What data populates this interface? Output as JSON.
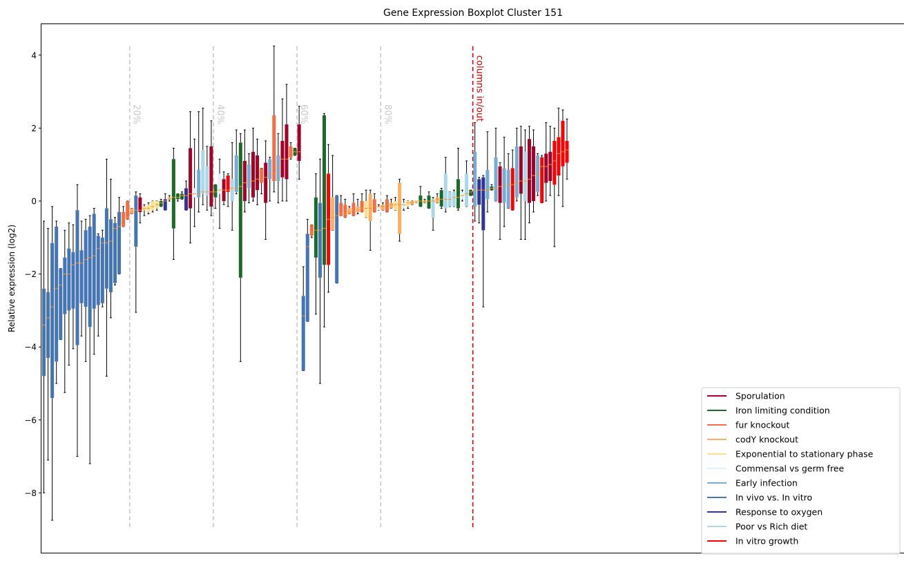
{
  "chart_data": {
    "type": "boxplot",
    "title": "Gene Expression Boxplot Cluster 151",
    "xlabel": "",
    "ylabel": "Relative expression (log2)",
    "ylim": [
      -9.7,
      4.85
    ],
    "yticks": [
      -8,
      -6,
      -4,
      -2,
      0,
      2,
      4
    ],
    "grid": false,
    "legend_position": "lower-right",
    "legend": [
      {
        "name": "Sporulation",
        "color": "#a50026"
      },
      {
        "name": "Iron limiting condition",
        "color": "#1a6a28"
      },
      {
        "name": "fur knockout",
        "color": "#f46d43"
      },
      {
        "name": "codY knockout",
        "color": "#fdae61"
      },
      {
        "name": "Exponential to stationary phase",
        "color": "#fee090"
      },
      {
        "name": "Commensal vs germ free",
        "color": "#e0f3f8"
      },
      {
        "name": "Early infection",
        "color": "#74add1"
      },
      {
        "name": "In vivo vs. In vitro",
        "color": "#4575b4"
      },
      {
        "name": "Response to oxygen",
        "color": "#313695"
      },
      {
        "name": "Poor vs Rich diet",
        "color": "#abd9e9"
      },
      {
        "name": "In vitro growth",
        "color": "#ff0000"
      }
    ],
    "annotations": [
      {
        "text": "20%",
        "color": "#c8c8c8"
      },
      {
        "text": "40%",
        "color": "#c8c8c8"
      },
      {
        "text": "60%",
        "color": "#c8c8c8"
      },
      {
        "text": "80%",
        "color": "#c8c8c8"
      },
      {
        "text": "columns in/out",
        "color": "#d40000"
      }
    ],
    "reference_lines": [
      {
        "position": 20.5,
        "color": "#c8c8c8",
        "style": "dashed"
      },
      {
        "position": 40.5,
        "color": "#c8c8c8",
        "style": "dashed"
      },
      {
        "position": 60.5,
        "color": "#c8c8c8",
        "style": "dashed"
      },
      {
        "position": 80.5,
        "color": "#c8c8c8",
        "style": "dashed"
      },
      {
        "position": 102.5,
        "color": "#d40000",
        "style": "dashed"
      }
    ],
    "boxes": [
      {
        "c": 7,
        "q1": -4.8,
        "med": -3.4,
        "q3": -2.4,
        "lo": -8.0,
        "hi": -0.55
      },
      {
        "c": 7,
        "q1": -4.3,
        "med": -3.2,
        "q3": -2.5,
        "lo": -7.1,
        "hi": -0.75
      },
      {
        "c": 7,
        "q1": -5.4,
        "med": -2.9,
        "q3": -1.15,
        "lo": -8.75,
        "hi": -0.15
      },
      {
        "c": 7,
        "q1": -4.4,
        "med": -2.4,
        "q3": -0.7,
        "lo": -5.0,
        "hi": -0.55
      },
      {
        "c": 7,
        "q1": -3.8,
        "med": -2.3,
        "q3": -1.85,
        "lo": -3.8,
        "hi": -1.85
      },
      {
        "c": 7,
        "q1": -3.1,
        "med": -2.0,
        "q3": -1.55,
        "lo": -5.25,
        "hi": -0.8
      },
      {
        "c": 7,
        "q1": -3.0,
        "med": -2.0,
        "q3": -1.3,
        "lo": -4.5,
        "hi": -0.6
      },
      {
        "c": 7,
        "q1": -2.95,
        "med": -1.75,
        "q3": -1.4,
        "lo": -4.05,
        "hi": -0.65
      },
      {
        "c": 7,
        "q1": -3.95,
        "med": -1.7,
        "q3": -0.25,
        "lo": -7.0,
        "hi": 0.45
      },
      {
        "c": 7,
        "q1": -2.8,
        "med": -1.7,
        "q3": -1.35,
        "lo": -3.7,
        "hi": -0.55
      },
      {
        "c": 7,
        "q1": -2.9,
        "med": -1.6,
        "q3": -0.8,
        "lo": -4.4,
        "hi": -0.5
      },
      {
        "c": 7,
        "q1": -3.45,
        "med": -1.55,
        "q3": -0.7,
        "lo": -7.2,
        "hi": -0.4
      },
      {
        "c": 7,
        "q1": -2.95,
        "med": -1.5,
        "q3": -0.35,
        "lo": -4.2,
        "hi": -0.2
      },
      {
        "c": 7,
        "q1": -2.85,
        "med": -1.3,
        "q3": -0.95,
        "lo": -3.7,
        "hi": -0.9
      },
      {
        "c": 7,
        "q1": -2.8,
        "med": -1.15,
        "q3": -1.0,
        "lo": -2.9,
        "hi": -0.8
      },
      {
        "c": 7,
        "q1": -2.4,
        "med": -1.15,
        "q3": -0.2,
        "lo": -4.8,
        "hi": 1.15
      },
      {
        "c": 7,
        "q1": -2.5,
        "med": -1.1,
        "q3": -0.5,
        "lo": -3.2,
        "hi": 0.6
      },
      {
        "c": 7,
        "q1": -2.25,
        "med": -0.75,
        "q3": -0.6,
        "lo": -2.3,
        "hi": -0.45
      },
      {
        "c": 7,
        "q1": -2.0,
        "med": -0.7,
        "q3": -0.3,
        "lo": -2.0,
        "hi": 0.1
      },
      {
        "c": 2,
        "q1": -0.7,
        "med": -0.65,
        "q3": -0.3,
        "lo": -0.7,
        "hi": -0.15
      },
      {
        "c": 2,
        "q1": -0.5,
        "med": -0.45,
        "q3": 0.0,
        "lo": -0.5,
        "hi": 0.0
      },
      {
        "c": 3,
        "q1": -0.35,
        "med": -0.3,
        "q3": -0.2,
        "lo": -0.35,
        "hi": -0.2
      },
      {
        "c": 7,
        "q1": -1.25,
        "med": -0.25,
        "q3": 0.15,
        "lo": -3.05,
        "hi": 0.25
      },
      {
        "c": 0,
        "q1": -0.3,
        "med": -0.25,
        "q3": 0.1,
        "lo": -0.6,
        "hi": 0.2
      },
      {
        "c": 4,
        "q1": -0.25,
        "med": -0.2,
        "q3": -0.15,
        "lo": -0.4,
        "hi": -0.1
      },
      {
        "c": 4,
        "q1": -0.3,
        "med": -0.2,
        "q3": -0.1,
        "lo": -0.35,
        "hi": -0.05
      },
      {
        "c": 4,
        "q1": -0.25,
        "med": -0.15,
        "q3": 0.0,
        "lo": -0.3,
        "hi": 0.0
      },
      {
        "c": 4,
        "q1": -0.2,
        "med": -0.1,
        "q3": 0.0,
        "lo": -0.25,
        "hi": 0.0
      },
      {
        "c": 1,
        "q1": -0.15,
        "med": -0.05,
        "q3": 0.0,
        "lo": -0.15,
        "hi": 0.05
      },
      {
        "c": 8,
        "q1": -0.25,
        "med": 0.0,
        "q3": 0.05,
        "lo": -0.25,
        "hi": 0.2
      },
      {
        "c": 3,
        "q1": 0.05,
        "med": 0.05,
        "q3": 0.1,
        "lo": 0.0,
        "hi": 0.15
      },
      {
        "c": 1,
        "q1": -0.75,
        "med": 0.1,
        "q3": 1.15,
        "lo": -1.6,
        "hi": 1.45
      },
      {
        "c": 1,
        "q1": 0.05,
        "med": 0.1,
        "q3": 0.2,
        "lo": 0.0,
        "hi": 0.2
      },
      {
        "c": 1,
        "q1": 0.05,
        "med": 0.15,
        "q3": 0.2,
        "lo": 0.05,
        "hi": 0.25
      },
      {
        "c": 8,
        "q1": -0.25,
        "med": 0.15,
        "q3": 0.35,
        "lo": -0.25,
        "hi": 0.55
      },
      {
        "c": 0,
        "q1": -0.2,
        "med": 0.2,
        "q3": 1.45,
        "lo": -1.15,
        "hi": 2.45
      },
      {
        "c": 5,
        "q1": 0.1,
        "med": 0.2,
        "q3": 0.35,
        "lo": -0.7,
        "hi": 1.7
      },
      {
        "c": 6,
        "q1": 0.1,
        "med": 0.2,
        "q3": 0.85,
        "lo": -0.3,
        "hi": 2.45
      },
      {
        "c": 9,
        "q1": 0.2,
        "med": 0.25,
        "q3": 1.4,
        "lo": -0.1,
        "hi": 2.55
      },
      {
        "c": 9,
        "q1": 0.15,
        "med": 0.25,
        "q3": 0.95,
        "lo": -0.25,
        "hi": 1.5
      },
      {
        "c": 0,
        "q1": -0.15,
        "med": 0.25,
        "q3": 1.5,
        "lo": -0.4,
        "hi": 2.2
      },
      {
        "c": 1,
        "q1": 0.1,
        "med": 0.25,
        "q3": 0.45,
        "lo": -0.2,
        "hi": 0.45
      },
      {
        "c": 5,
        "q1": 0.2,
        "med": 0.3,
        "q3": 0.75,
        "lo": -0.75,
        "hi": 1.15
      },
      {
        "c": 0,
        "q1": 0.0,
        "med": 0.3,
        "q3": 0.6,
        "lo": -0.1,
        "hi": 0.8
      },
      {
        "c": 10,
        "q1": 0.25,
        "med": 0.3,
        "q3": 0.7,
        "lo": -0.15,
        "hi": 0.75
      },
      {
        "c": 9,
        "q1": 0.0,
        "med": 0.35,
        "q3": 0.6,
        "lo": -0.8,
        "hi": 1.6
      },
      {
        "c": 6,
        "q1": 0.25,
        "med": 0.35,
        "q3": 1.25,
        "lo": 0.2,
        "hi": 1.95
      },
      {
        "c": 1,
        "q1": -2.1,
        "med": 0.4,
        "q3": 1.6,
        "lo": -4.4,
        "hi": 1.85
      },
      {
        "c": 0,
        "q1": 0.0,
        "med": 0.5,
        "q3": 1.1,
        "lo": -0.3,
        "hi": 1.95
      },
      {
        "c": 6,
        "q1": 0.35,
        "med": 0.55,
        "q3": 1.0,
        "lo": -0.05,
        "hi": 1.3
      },
      {
        "c": 0,
        "q1": 0.1,
        "med": 0.55,
        "q3": 1.35,
        "lo": 0.0,
        "hi": 2.0
      },
      {
        "c": 0,
        "q1": 0.3,
        "med": 0.6,
        "q3": 1.25,
        "lo": -0.1,
        "hi": 1.7
      },
      {
        "c": 2,
        "q1": 0.5,
        "med": 0.6,
        "q3": 0.9,
        "lo": 0.2,
        "hi": 0.9
      },
      {
        "c": 0,
        "q1": -0.05,
        "med": 0.65,
        "q3": 1.05,
        "lo": -1.05,
        "hi": 1.65
      },
      {
        "c": 6,
        "q1": 0.6,
        "med": 0.75,
        "q3": 1.15,
        "lo": 0.0,
        "hi": 1.2
      },
      {
        "c": 2,
        "q1": 0.55,
        "med": 0.75,
        "q3": 2.35,
        "lo": 0.25,
        "hi": 4.25
      },
      {
        "c": 6,
        "q1": 0.55,
        "med": 0.9,
        "q3": 1.25,
        "lo": -0.05,
        "hi": 1.85
      },
      {
        "c": 0,
        "q1": 0.65,
        "med": 1.15,
        "q3": 1.65,
        "lo": 0.0,
        "hi": 2.8
      },
      {
        "c": 0,
        "q1": 0.6,
        "med": 1.15,
        "q3": 2.1,
        "lo": 0.0,
        "hi": 3.2
      },
      {
        "c": 2,
        "q1": 1.2,
        "med": 1.2,
        "q3": 1.5,
        "lo": 1.15,
        "hi": 1.6
      },
      {
        "c": 1,
        "q1": 1.25,
        "med": 1.35,
        "q3": 1.45,
        "lo": 1.25,
        "hi": 1.45
      },
      {
        "c": 0,
        "q1": 1.1,
        "med": 1.35,
        "q3": 2.1,
        "lo": 0.6,
        "hi": 2.6
      },
      {
        "c": 7,
        "q1": -4.65,
        "med": -3.15,
        "q3": -2.6,
        "lo": -4.65,
        "hi": -1.8
      },
      {
        "c": 7,
        "q1": -3.3,
        "med": -1.25,
        "q3": -0.9,
        "lo": -3.3,
        "hi": -0.5
      },
      {
        "c": 2,
        "q1": -0.95,
        "med": -0.85,
        "q3": -0.65,
        "lo": -1.0,
        "hi": -0.65
      },
      {
        "c": 1,
        "q1": -1.55,
        "med": -0.8,
        "q3": 0.1,
        "lo": -3.1,
        "hi": 0.75
      },
      {
        "c": 7,
        "q1": -2.1,
        "med": -0.8,
        "q3": -0.05,
        "lo": -5.0,
        "hi": 1.15
      },
      {
        "c": 1,
        "q1": -1.75,
        "med": -0.75,
        "q3": 2.35,
        "lo": -3.45,
        "hi": 2.4
      },
      {
        "c": 10,
        "q1": -1.75,
        "med": -0.5,
        "q3": 0.75,
        "lo": -2.5,
        "hi": 1.55
      },
      {
        "c": 3,
        "q1": -0.8,
        "med": -0.45,
        "q3": 0.1,
        "lo": -0.8,
        "hi": 1.25
      },
      {
        "c": 7,
        "q1": -2.25,
        "med": -0.4,
        "q3": 0.15,
        "lo": -2.25,
        "hi": 0.15
      },
      {
        "c": 2,
        "q1": -0.4,
        "med": -0.35,
        "q3": -0.05,
        "lo": -0.4,
        "hi": 0.15
      },
      {
        "c": 2,
        "q1": -0.45,
        "med": -0.35,
        "q3": -0.1,
        "lo": -0.45,
        "hi": 0.05
      },
      {
        "c": 3,
        "q1": -0.35,
        "med": -0.3,
        "q3": -0.2,
        "lo": -0.35,
        "hi": -0.15
      },
      {
        "c": 2,
        "q1": -0.4,
        "med": -0.25,
        "q3": -0.05,
        "lo": -0.4,
        "hi": 0.2
      },
      {
        "c": 3,
        "q1": -0.3,
        "med": -0.25,
        "q3": -0.15,
        "lo": -0.35,
        "hi": 0.05
      },
      {
        "c": 2,
        "q1": -0.3,
        "med": -0.2,
        "q3": 0.0,
        "lo": -0.3,
        "hi": 0.2
      },
      {
        "c": 4,
        "q1": -0.45,
        "med": -0.2,
        "q3": 0.0,
        "lo": -0.45,
        "hi": 0.3
      },
      {
        "c": 3,
        "q1": -0.55,
        "med": -0.2,
        "q3": 0.2,
        "lo": -1.35,
        "hi": 0.3
      },
      {
        "c": 2,
        "q1": -0.3,
        "med": -0.15,
        "q3": 0.05,
        "lo": -0.3,
        "hi": 0.2
      },
      {
        "c": 5,
        "q1": -0.25,
        "med": -0.15,
        "q3": -0.15,
        "lo": -0.25,
        "hi": -0.1
      },
      {
        "c": 3,
        "q1": -0.25,
        "med": -0.15,
        "q3": -0.1,
        "lo": -0.25,
        "hi": -0.05
      },
      {
        "c": 2,
        "q1": -0.3,
        "med": -0.1,
        "q3": 0.05,
        "lo": -0.3,
        "hi": 0.15
      },
      {
        "c": 3,
        "q1": -0.2,
        "med": -0.1,
        "q3": -0.05,
        "lo": -0.2,
        "hi": 0.05
      },
      {
        "c": 4,
        "q1": -0.25,
        "med": -0.1,
        "q3": 0.0,
        "lo": -0.25,
        "hi": 0.1
      },
      {
        "c": 3,
        "q1": -0.9,
        "med": -0.1,
        "q3": 0.5,
        "lo": -1.1,
        "hi": 0.6
      },
      {
        "c": 5,
        "q1": -0.2,
        "med": -0.1,
        "q3": -0.05,
        "lo": -0.25,
        "hi": 0.05
      },
      {
        "c": 4,
        "q1": -0.15,
        "med": -0.05,
        "q3": 0.0,
        "lo": -0.2,
        "hi": 0.0
      },
      {
        "c": 3,
        "q1": -0.1,
        "med": -0.05,
        "q3": 0.0,
        "lo": -0.1,
        "hi": 0.0
      },
      {
        "c": 4,
        "q1": -0.05,
        "med": 0.0,
        "q3": 0.0,
        "lo": -0.05,
        "hi": 0.0
      },
      {
        "c": 1,
        "q1": -0.15,
        "med": 0.0,
        "q3": 0.15,
        "lo": -0.15,
        "hi": 0.4
      },
      {
        "c": 3,
        "q1": -0.05,
        "med": 0.0,
        "q3": 0.0,
        "lo": -0.05,
        "hi": 0.05
      },
      {
        "c": 1,
        "q1": -0.2,
        "med": 0.0,
        "q3": 0.15,
        "lo": -0.2,
        "hi": 0.25
      },
      {
        "c": 9,
        "q1": -0.45,
        "med": 0.0,
        "q3": 0.05,
        "lo": -0.8,
        "hi": 0.1
      },
      {
        "c": 3,
        "q1": -0.05,
        "med": 0.05,
        "q3": 0.1,
        "lo": -0.05,
        "hi": 0.2
      },
      {
        "c": 1,
        "q1": -0.15,
        "med": 0.05,
        "q3": 0.3,
        "lo": -0.2,
        "hi": 0.35
      },
      {
        "c": 9,
        "q1": -0.2,
        "med": 0.05,
        "q3": 0.75,
        "lo": -0.3,
        "hi": 1.2
      },
      {
        "c": 9,
        "q1": -0.15,
        "med": 0.05,
        "q3": 0.25,
        "lo": -0.15,
        "hi": 0.25
      },
      {
        "c": 9,
        "q1": -0.15,
        "med": 0.1,
        "q3": 0.25,
        "lo": -0.15,
        "hi": 0.3
      },
      {
        "c": 1,
        "q1": -0.2,
        "med": 0.1,
        "q3": 0.6,
        "lo": -0.25,
        "hi": 1.45
      },
      {
        "c": 5,
        "q1": 0.05,
        "med": 0.15,
        "q3": 0.25,
        "lo": 0.0,
        "hi": 0.3
      },
      {
        "c": 9,
        "q1": -0.15,
        "med": 0.2,
        "q3": 0.75,
        "lo": -0.15,
        "hi": 1.1
      },
      {
        "c": 1,
        "q1": 0.15,
        "med": 0.25,
        "q3": 0.3,
        "lo": 0.15,
        "hi": 0.3
      },
      {
        "c": 6,
        "q1": -0.15,
        "med": 0.3,
        "q3": 1.35,
        "lo": -0.55,
        "hi": 2.15
      },
      {
        "c": 8,
        "q1": -0.1,
        "med": 0.3,
        "q3": 0.6,
        "lo": -0.6,
        "hi": 0.65
      },
      {
        "c": 8,
        "q1": -0.8,
        "med": 0.3,
        "q3": 0.65,
        "lo": -2.9,
        "hi": 0.7
      },
      {
        "c": 6,
        "q1": 0.05,
        "med": 0.3,
        "q3": 0.85,
        "lo": -0.3,
        "hi": 1.9
      },
      {
        "c": 1,
        "q1": 0.3,
        "med": 0.35,
        "q3": 0.4,
        "lo": 0.3,
        "hi": 0.45
      },
      {
        "c": 6,
        "q1": 0.0,
        "med": 0.35,
        "q3": 1.2,
        "lo": 0.0,
        "hi": 2.0
      },
      {
        "c": 0,
        "q1": -0.05,
        "med": 0.4,
        "q3": 0.95,
        "lo": -1.05,
        "hi": 1.05
      },
      {
        "c": 6,
        "q1": -0.05,
        "med": 0.4,
        "q3": 0.9,
        "lo": -0.7,
        "hi": 1.75
      },
      {
        "c": 6,
        "q1": -0.2,
        "med": 0.45,
        "q3": 0.85,
        "lo": -0.2,
        "hi": 1.3
      },
      {
        "c": 10,
        "q1": -0.25,
        "med": 0.45,
        "q3": 0.9,
        "lo": -0.25,
        "hi": 1.4
      },
      {
        "c": 6,
        "q1": 0.1,
        "med": 0.5,
        "q3": 1.5,
        "lo": 0.0,
        "hi": 2.0
      },
      {
        "c": 0,
        "q1": 0.2,
        "med": 0.55,
        "q3": 1.5,
        "lo": -1.05,
        "hi": 2.05
      },
      {
        "c": 9,
        "q1": 0.0,
        "med": 0.55,
        "q3": 1.35,
        "lo": -1.05,
        "hi": 1.95
      },
      {
        "c": 0,
        "q1": -0.05,
        "med": 0.6,
        "q3": 1.7,
        "lo": -0.6,
        "hi": 2.05
      },
      {
        "c": 0,
        "q1": 0.0,
        "med": 0.7,
        "q3": 1.5,
        "lo": -0.3,
        "hi": 1.95
      },
      {
        "c": 6,
        "q1": 0.25,
        "med": 0.75,
        "q3": 1.25,
        "lo": 0.15,
        "hi": 1.3
      },
      {
        "c": 10,
        "q1": -0.05,
        "med": 0.95,
        "q3": 1.2,
        "lo": -0.05,
        "hi": 1.25
      },
      {
        "c": 0,
        "q1": 0.5,
        "med": 0.95,
        "q3": 1.3,
        "lo": 0.0,
        "hi": 2.15
      },
      {
        "c": 0,
        "q1": 0.55,
        "med": 1.0,
        "q3": 1.35,
        "lo": 0.15,
        "hi": 2.05
      },
      {
        "c": 10,
        "q1": 0.45,
        "med": 1.1,
        "q3": 1.65,
        "lo": -1.25,
        "hi": 2.0
      },
      {
        "c": 10,
        "q1": 0.7,
        "med": 1.3,
        "q3": 1.75,
        "lo": 0.15,
        "hi": 2.55
      },
      {
        "c": 10,
        "q1": 0.95,
        "med": 1.35,
        "q3": 2.2,
        "lo": -0.15,
        "hi": 2.5
      },
      {
        "c": 10,
        "q1": 1.05,
        "med": 1.4,
        "q3": 1.65,
        "lo": 0.6,
        "hi": 2.25
      }
    ]
  }
}
